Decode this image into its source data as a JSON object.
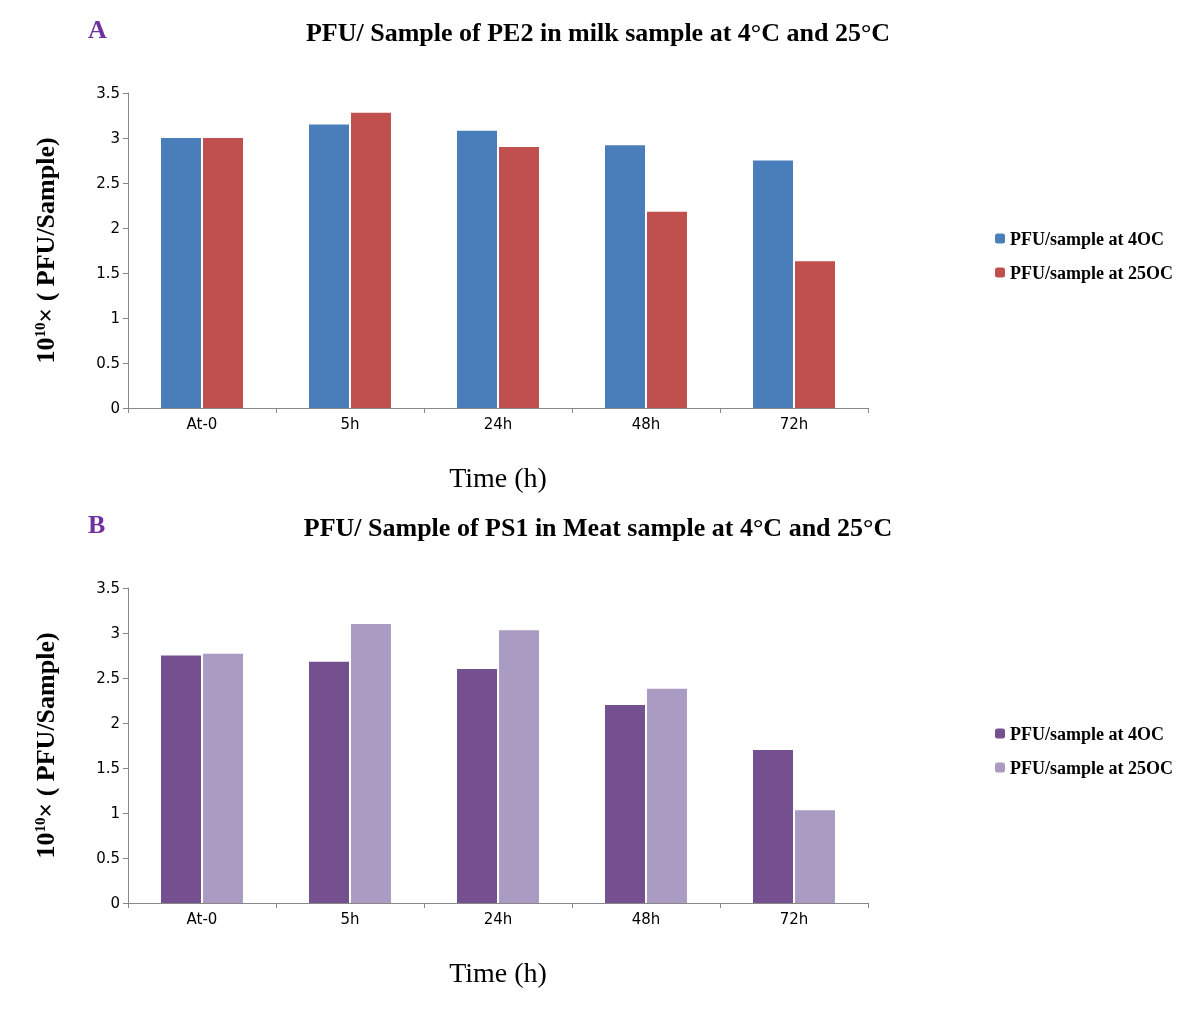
{
  "chart_data": [
    {
      "type": "bar",
      "title": "PFU/ Sample of PE2 in milk sample at 4°C and 25°C",
      "annotations": [
        "A"
      ],
      "xlabel": "Time (h)",
      "ylabel": "10$^{10}$× ( PFU/Sample)",
      "categories": [
        "At-0",
        "5h",
        "24h",
        "48h",
        "72h"
      ],
      "series": [
        {
          "name": "PFU/sample at 4OC",
          "color": "#4a7ebb",
          "values": [
            3.0,
            3.15,
            3.08,
            2.92,
            2.75
          ]
        },
        {
          "name": "PFU/sample at 25OC",
          "color": "#c0504d",
          "values": [
            3.0,
            3.28,
            2.9,
            2.18,
            1.63
          ]
        }
      ],
      "ylim": [
        0,
        3.5
      ],
      "yticks": [
        0,
        0.5,
        1,
        1.5,
        2,
        2.5,
        3,
        3.5
      ],
      "grid": false,
      "legend": "right"
    },
    {
      "type": "bar",
      "title": "PFU/ Sample of PS1 in Meat sample at 4°C and 25°C",
      "annotations": [
        "B"
      ],
      "xlabel": "Time (h)",
      "ylabel": "10$^{10}$× ( PFU/Sample)",
      "categories": [
        "At-0",
        "5h",
        "24h",
        "48h",
        "72h"
      ],
      "series": [
        {
          "name": "PFU/sample at 4OC",
          "color": "#75508f",
          "values": [
            2.75,
            2.68,
            2.6,
            2.2,
            1.7
          ]
        },
        {
          "name": "PFU/sample at 25OC",
          "color": "#a99bc1",
          "values": [
            2.77,
            3.1,
            3.03,
            2.38,
            1.03
          ]
        }
      ],
      "ylim": [
        0,
        3.5
      ],
      "yticks": [
        0,
        0.5,
        1,
        1.5,
        2,
        2.5,
        3,
        3.5
      ],
      "grid": false,
      "legend": "right"
    }
  ]
}
